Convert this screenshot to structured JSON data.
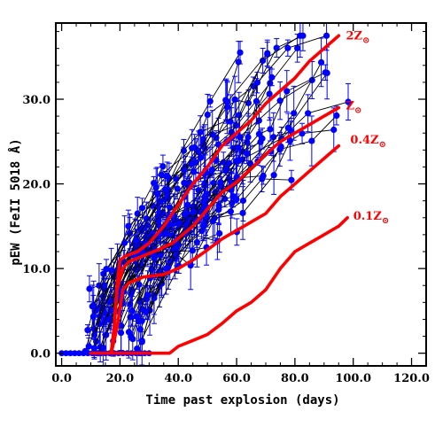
{
  "chart_data": {
    "type": "line",
    "xlabel": "Time past explosion (days)",
    "ylabel": "pEW (FeII 5018 Å)",
    "xlim": [
      -2,
      125
    ],
    "ylim": [
      -1.5,
      39
    ],
    "x_ticks": [
      0,
      20,
      40,
      60,
      80,
      100,
      120
    ],
    "x_tick_labels": [
      "0.0",
      "20.0",
      "40.0",
      "60.0",
      "80.0",
      "100.0",
      "120.0"
    ],
    "y_ticks": [
      0,
      10,
      20,
      30
    ],
    "y_tick_labels": [
      "0.0",
      "10.0",
      "20.0",
      "30.0"
    ],
    "grid": false,
    "colors": {
      "observations": "#0000ff",
      "connectors": "#000000",
      "models": "#ff0000"
    },
    "series": [
      {
        "name": "2Z⊙",
        "label_text": "2Z",
        "label_sub": "⊙",
        "values": [
          [
            17,
            0
          ],
          [
            18,
            3
          ],
          [
            19,
            8
          ],
          [
            20,
            11
          ],
          [
            22,
            11.5
          ],
          [
            26,
            12
          ],
          [
            30,
            13
          ],
          [
            35,
            15
          ],
          [
            40,
            17.5
          ],
          [
            45,
            20
          ],
          [
            50,
            22
          ],
          [
            55,
            24.5
          ],
          [
            60,
            26
          ],
          [
            65,
            27.5
          ],
          [
            70,
            29.5
          ],
          [
            75,
            31
          ],
          [
            80,
            32.5
          ],
          [
            85,
            34.5
          ],
          [
            90,
            36
          ],
          [
            95,
            37.5
          ]
        ]
      },
      {
        "name": "Z⊙",
        "label_text": "Z",
        "label_sub": "⊙",
        "values": [
          [
            17,
            0
          ],
          [
            18,
            3
          ],
          [
            19,
            7.5
          ],
          [
            21,
            10
          ],
          [
            23,
            10.8
          ],
          [
            28,
            11.5
          ],
          [
            33,
            12.2
          ],
          [
            38,
            13
          ],
          [
            45,
            15
          ],
          [
            50,
            17
          ],
          [
            55,
            19
          ],
          [
            60,
            20.2
          ],
          [
            65,
            21.8
          ],
          [
            70,
            23.5
          ],
          [
            75,
            25
          ],
          [
            80,
            26
          ],
          [
            85,
            27
          ],
          [
            90,
            28
          ],
          [
            95,
            29
          ]
        ]
      },
      {
        "name": "0.4Z⊙",
        "label_text": "0.4Z",
        "label_sub": "⊙",
        "values": [
          [
            17,
            0
          ],
          [
            19,
            3
          ],
          [
            21,
            7.5
          ],
          [
            23,
            8.3
          ],
          [
            28,
            9
          ],
          [
            35,
            9.3
          ],
          [
            40,
            10
          ],
          [
            45,
            11
          ],
          [
            50,
            12.2
          ],
          [
            55,
            13.5
          ],
          [
            60,
            14.5
          ],
          [
            65,
            15.5
          ],
          [
            70,
            16.5
          ],
          [
            75,
            18.5
          ],
          [
            80,
            20
          ],
          [
            85,
            21.5
          ],
          [
            90,
            23
          ],
          [
            95,
            24.5
          ]
        ]
      },
      {
        "name": "0.1Z⊙",
        "label_text": "0.1Z",
        "label_sub": "⊙",
        "values": [
          [
            10,
            0
          ],
          [
            37,
            0
          ],
          [
            40,
            0.8
          ],
          [
            45,
            1.5
          ],
          [
            50,
            2.2
          ],
          [
            55,
            3.5
          ],
          [
            60,
            5
          ],
          [
            65,
            6
          ],
          [
            70,
            7.5
          ],
          [
            75,
            10
          ],
          [
            80,
            12
          ],
          [
            85,
            13
          ],
          [
            90,
            14
          ],
          [
            95,
            15
          ],
          [
            98,
            16
          ]
        ]
      }
    ]
  }
}
